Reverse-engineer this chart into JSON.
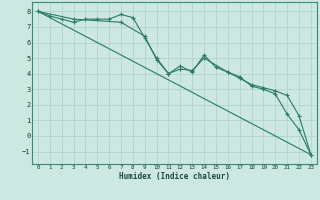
{
  "title": "",
  "xlabel": "Humidex (Indice chaleur)",
  "background_color": "#cce8e0",
  "grid_color": "#b0d4cc",
  "line_color": "#2a7a6a",
  "xlim": [
    -0.5,
    23.5
  ],
  "ylim": [
    -1.8,
    8.6
  ],
  "x_ticks": [
    0,
    1,
    2,
    3,
    4,
    5,
    6,
    7,
    8,
    9,
    10,
    11,
    12,
    13,
    14,
    15,
    16,
    17,
    18,
    19,
    20,
    21,
    22,
    23
  ],
  "y_ticks": [
    -1,
    0,
    1,
    2,
    3,
    4,
    5,
    6,
    7,
    8
  ],
  "series1_x": [
    0,
    1,
    2,
    3,
    4,
    5,
    6,
    7,
    8,
    9,
    10,
    11,
    12,
    13,
    14,
    15,
    16,
    17,
    18,
    19,
    20,
    21,
    22,
    23
  ],
  "series1_y": [
    8.0,
    7.7,
    7.5,
    7.3,
    7.5,
    7.5,
    7.5,
    7.8,
    7.6,
    6.3,
    5.0,
    4.0,
    4.5,
    4.1,
    5.2,
    4.4,
    4.1,
    3.8,
    3.2,
    3.0,
    2.7,
    1.4,
    0.4,
    -1.2
  ],
  "series2_x": [
    0,
    3,
    7,
    9,
    10,
    11,
    12,
    13,
    14,
    16,
    17,
    18,
    19,
    20,
    21,
    22,
    23
  ],
  "series2_y": [
    8.0,
    7.5,
    7.3,
    6.4,
    4.9,
    4.0,
    4.3,
    4.2,
    5.0,
    4.1,
    3.7,
    3.3,
    3.1,
    2.9,
    2.6,
    1.3,
    -1.2
  ],
  "series3_x": [
    0,
    23
  ],
  "series3_y": [
    8.0,
    -1.2
  ]
}
